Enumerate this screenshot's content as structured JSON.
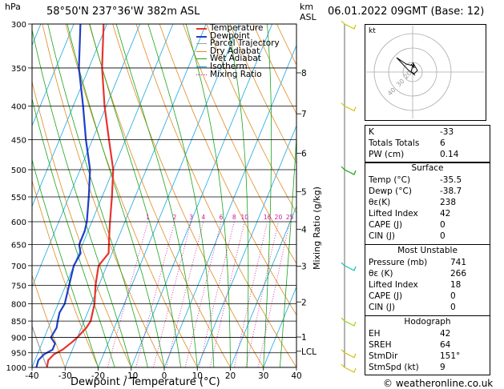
{
  "header": {
    "location": "58°50'N 237°36'W 382m ASL",
    "hpa_unit": "hPa",
    "km_unit": "km",
    "asl_unit": "ASL",
    "datetime": "06.01.2022 09GMT (Base: 12)"
  },
  "chart_data": {
    "type": "skew-t",
    "title": "58°50'N 237°36'W 382m ASL",
    "xlabel": "Dewpoint / Temperature (°C)",
    "ylabel": "hPa",
    "y2label": "Mixing Ratio (g/kg)",
    "xlim": [
      -40,
      40
    ],
    "ylim": [
      1000,
      300
    ],
    "x_ticks": [
      "-40",
      "-30",
      "-20",
      "-10",
      "0",
      "10",
      "20",
      "30",
      "40"
    ],
    "pressure_levels": [
      "300",
      "350",
      "400",
      "450",
      "500",
      "550",
      "600",
      "650",
      "700",
      "750",
      "800",
      "850",
      "900",
      "950",
      "1000"
    ],
    "km_ticks": [
      {
        "label": "8",
        "p": 356
      },
      {
        "label": "7",
        "p": 411
      },
      {
        "label": "6",
        "p": 472
      },
      {
        "label": "5",
        "p": 540
      },
      {
        "label": "4",
        "p": 616
      },
      {
        "label": "3",
        "p": 701
      },
      {
        "label": "2",
        "p": 795
      },
      {
        "label": "1",
        "p": 899
      },
      {
        "label": "LCL",
        "p": 945
      }
    ],
    "mixing_ratio_labels": [
      "1",
      "2",
      "3",
      "4",
      "6",
      "8",
      "10",
      "16",
      "20",
      "25"
    ],
    "mixing_ratio_values": [
      1,
      2,
      3,
      4,
      6,
      8,
      10,
      16,
      20,
      25
    ],
    "legend": [
      "Temperature",
      "Dewpoint",
      "Parcel Trajectory",
      "Dry Adiabat",
      "Wet Adiabat",
      "Isotherm",
      "Mixing Ratio"
    ],
    "colors": {
      "temperature": "#e8332f",
      "dewpoint": "#1f3fc8",
      "parcel": "#9e9e9e",
      "dry_adiabat": "#e08a1f",
      "wet_adiabat": "#1aa51a",
      "isotherm": "#18a8e0",
      "mixing_ratio": "#d0139a"
    },
    "series": [
      {
        "name": "Temperature",
        "points": [
          [
            1000,
            -35.5
          ],
          [
            975,
            -36
          ],
          [
            955,
            -35
          ],
          [
            940,
            -33
          ],
          [
            915,
            -31
          ],
          [
            900,
            -30
          ],
          [
            870,
            -28.5
          ],
          [
            850,
            -28
          ],
          [
            825,
            -28.5
          ],
          [
            800,
            -29
          ],
          [
            750,
            -31
          ],
          [
            700,
            -32.5
          ],
          [
            670,
            -31
          ],
          [
            650,
            -32
          ],
          [
            620,
            -33.5
          ],
          [
            600,
            -34.5
          ],
          [
            550,
            -37
          ],
          [
            500,
            -40
          ],
          [
            450,
            -45
          ],
          [
            400,
            -50.5
          ],
          [
            350,
            -56
          ],
          [
            300,
            -61
          ]
        ]
      },
      {
        "name": "Dewpoint",
        "points": [
          [
            1000,
            -38.7
          ],
          [
            975,
            -39
          ],
          [
            955,
            -38
          ],
          [
            940,
            -36
          ],
          [
            920,
            -36
          ],
          [
            900,
            -38
          ],
          [
            870,
            -37.5
          ],
          [
            850,
            -38
          ],
          [
            825,
            -38.5
          ],
          [
            800,
            -38
          ],
          [
            750,
            -39
          ],
          [
            700,
            -40
          ],
          [
            670,
            -39.5
          ],
          [
            650,
            -41
          ],
          [
            620,
            -41
          ],
          [
            600,
            -41.5
          ],
          [
            550,
            -44
          ],
          [
            500,
            -47
          ],
          [
            450,
            -52
          ],
          [
            400,
            -57
          ],
          [
            350,
            -63
          ],
          [
            300,
            -68
          ]
        ]
      }
    ],
    "wind_barbs": [
      {
        "p": 300,
        "color": "#d4c21a"
      },
      {
        "p": 400,
        "color": "#d4c21a"
      },
      {
        "p": 500,
        "color": "#1aa51a"
      },
      {
        "p": 700,
        "color": "#18c0b0"
      },
      {
        "p": 850,
        "color": "#9ed61a"
      },
      {
        "p": 950,
        "color": "#d4c21a"
      },
      {
        "p": 1000,
        "color": "#d4c21a"
      }
    ]
  },
  "hodograph": {
    "label": "kt",
    "ring_labels": [
      "40",
      "30",
      "20"
    ]
  },
  "indices": [
    {
      "k": "K",
      "v": "-33"
    },
    {
      "k": "Totals Totals",
      "v": "6"
    },
    {
      "k": "PW (cm)",
      "v": "0.14"
    }
  ],
  "surface": {
    "title": "Surface",
    "rows": [
      {
        "k": "Temp (°C)",
        "v": "-35.5"
      },
      {
        "k": "Dewp (°C)",
        "v": "-38.7"
      },
      {
        "k": "θε(K)",
        "v": "238"
      },
      {
        "k": "Lifted Index",
        "v": "42"
      },
      {
        "k": "CAPE (J)",
        "v": "0"
      },
      {
        "k": "CIN (J)",
        "v": "0"
      }
    ]
  },
  "most_unstable": {
    "title": "Most Unstable",
    "rows": [
      {
        "k": "Pressure (mb)",
        "v": "741"
      },
      {
        "k": "θε (K)",
        "v": "266"
      },
      {
        "k": "Lifted Index",
        "v": "18"
      },
      {
        "k": "CAPE (J)",
        "v": "0"
      },
      {
        "k": "CIN (J)",
        "v": "0"
      }
    ]
  },
  "hodograph_table": {
    "title": "Hodograph",
    "rows": [
      {
        "k": "EH",
        "v": "42"
      },
      {
        "k": "SREH",
        "v": "64"
      },
      {
        "k": "StmDir",
        "v": "151°"
      },
      {
        "k": "StmSpd (kt)",
        "v": "9"
      }
    ]
  },
  "footer": {
    "copyright": "© weatheronline.co.uk"
  }
}
